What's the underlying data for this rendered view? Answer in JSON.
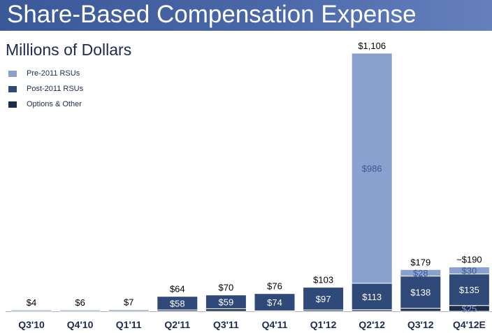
{
  "header": {
    "title": "Share-Based Compensation Expense"
  },
  "chart_data": {
    "type": "bar",
    "stacked": true,
    "title": "Share-Based Compensation Expense",
    "ylabel": "Millions of Dollars",
    "xlabel": "",
    "ylim": [
      0,
      1106
    ],
    "grid": false,
    "legend_position": "top-left",
    "colors": {
      "pre2011": "#8aa1cf",
      "post2011": "#2f4a78",
      "options": "#1b2c4c",
      "title_bar": "#3b5998"
    },
    "categories": [
      "Q3'10",
      "Q4'10",
      "Q1'11",
      "Q2'11",
      "Q3'11",
      "Q4'11",
      "Q1'12",
      "Q2'12",
      "Q3'12",
      "Q4'12E"
    ],
    "series": [
      {
        "name": "Pre-2011 RSUs",
        "values": [
          0,
          0,
          0,
          0,
          0,
          0,
          0,
          986,
          28,
          30
        ]
      },
      {
        "name": "Post-2011 RSUs",
        "values": [
          0,
          0,
          0,
          58,
          59,
          74,
          97,
          113,
          138,
          135
        ]
      },
      {
        "name": "Options & Other",
        "values": [
          4,
          6,
          7,
          6,
          11,
          2,
          6,
          7,
          13,
          25
        ]
      }
    ],
    "totals": [
      4,
      6,
      7,
      64,
      70,
      76,
      103,
      1106,
      179,
      190
    ],
    "total_labels": [
      "$4",
      "$6",
      "$7",
      "$64",
      "$70",
      "$76",
      "$103",
      "$1,106",
      "$179",
      "~$190"
    ],
    "segment_labels": {
      "Pre-2011 RSUs": [
        "",
        "",
        "",
        "",
        "",
        "",
        "",
        "$986",
        "$28",
        "$30"
      ],
      "Post-2011 RSUs": [
        "",
        "",
        "",
        "$58",
        "$59",
        "$74",
        "$97",
        "$113",
        "$138",
        "$135"
      ],
      "Options & Other": [
        "",
        "",
        "",
        "",
        "",
        "",
        "",
        "",
        "",
        "$25"
      ]
    }
  }
}
